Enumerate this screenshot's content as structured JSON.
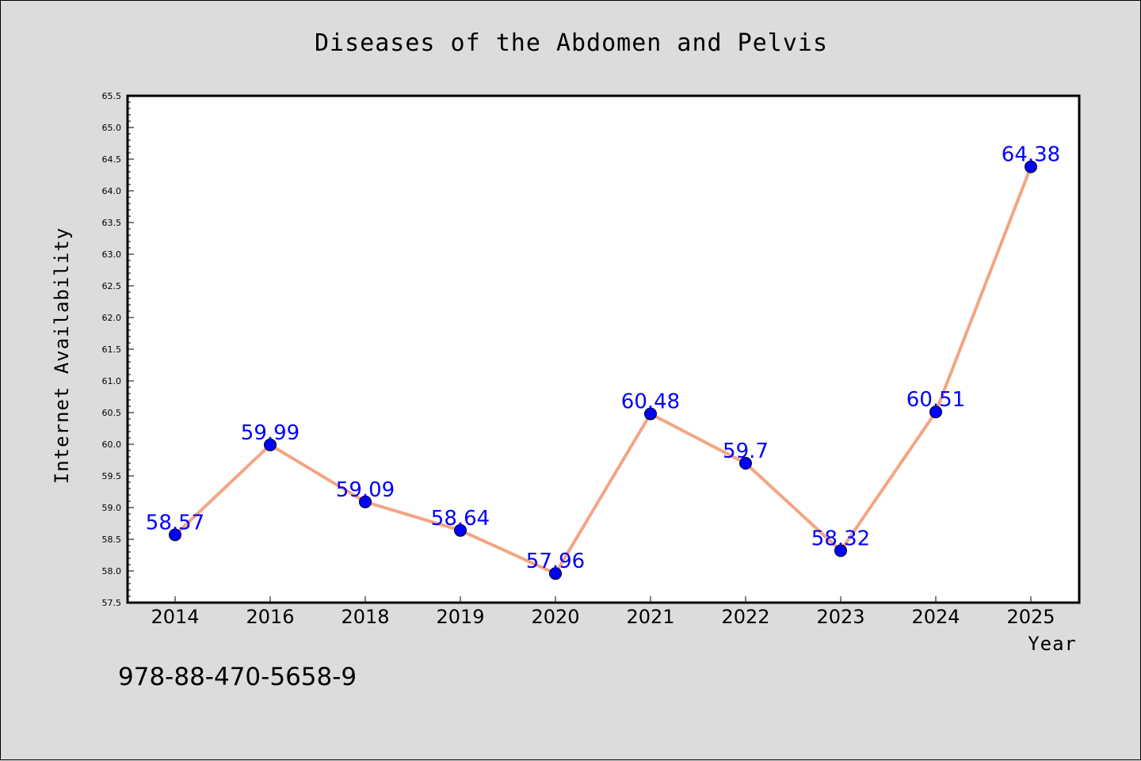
{
  "chart_data": {
    "type": "line",
    "title": "Diseases of the Abdomen and Pelvis",
    "xlabel": "Year",
    "ylabel": "Internet Availability",
    "categories": [
      "2014",
      "2016",
      "2018",
      "2019",
      "2020",
      "2021",
      "2022",
      "2023",
      "2024",
      "2025"
    ],
    "series": [
      {
        "values": [
          58.57,
          59.99,
          59.09,
          58.64,
          57.96,
          60.48,
          59.7,
          58.32,
          60.51,
          64.38
        ],
        "labels": [
          "58.57",
          "59.99",
          "59.09",
          "58.64",
          "57.96",
          "60.48",
          "59.7",
          "58.32",
          "60.51",
          "64.38"
        ],
        "line_color": "#f4a582",
        "marker_color": "#0000ff",
        "label_color": "#0000ff"
      }
    ],
    "ylim": [
      57.5,
      65.5
    ],
    "yticks": [
      "57.5",
      "58.0",
      "58.5",
      "59.0",
      "59.5",
      "60.0",
      "60.5",
      "61.0",
      "61.5",
      "62.0",
      "62.5",
      "63.0",
      "63.5",
      "64.0",
      "64.5",
      "65.0",
      "65.5"
    ],
    "grid": false,
    "legend": "none"
  },
  "footer_text": "978-88-470-5658-9",
  "colors": {
    "background": "#dcdcdc",
    "plot_background": "#ffffff",
    "axis": "#000000"
  }
}
